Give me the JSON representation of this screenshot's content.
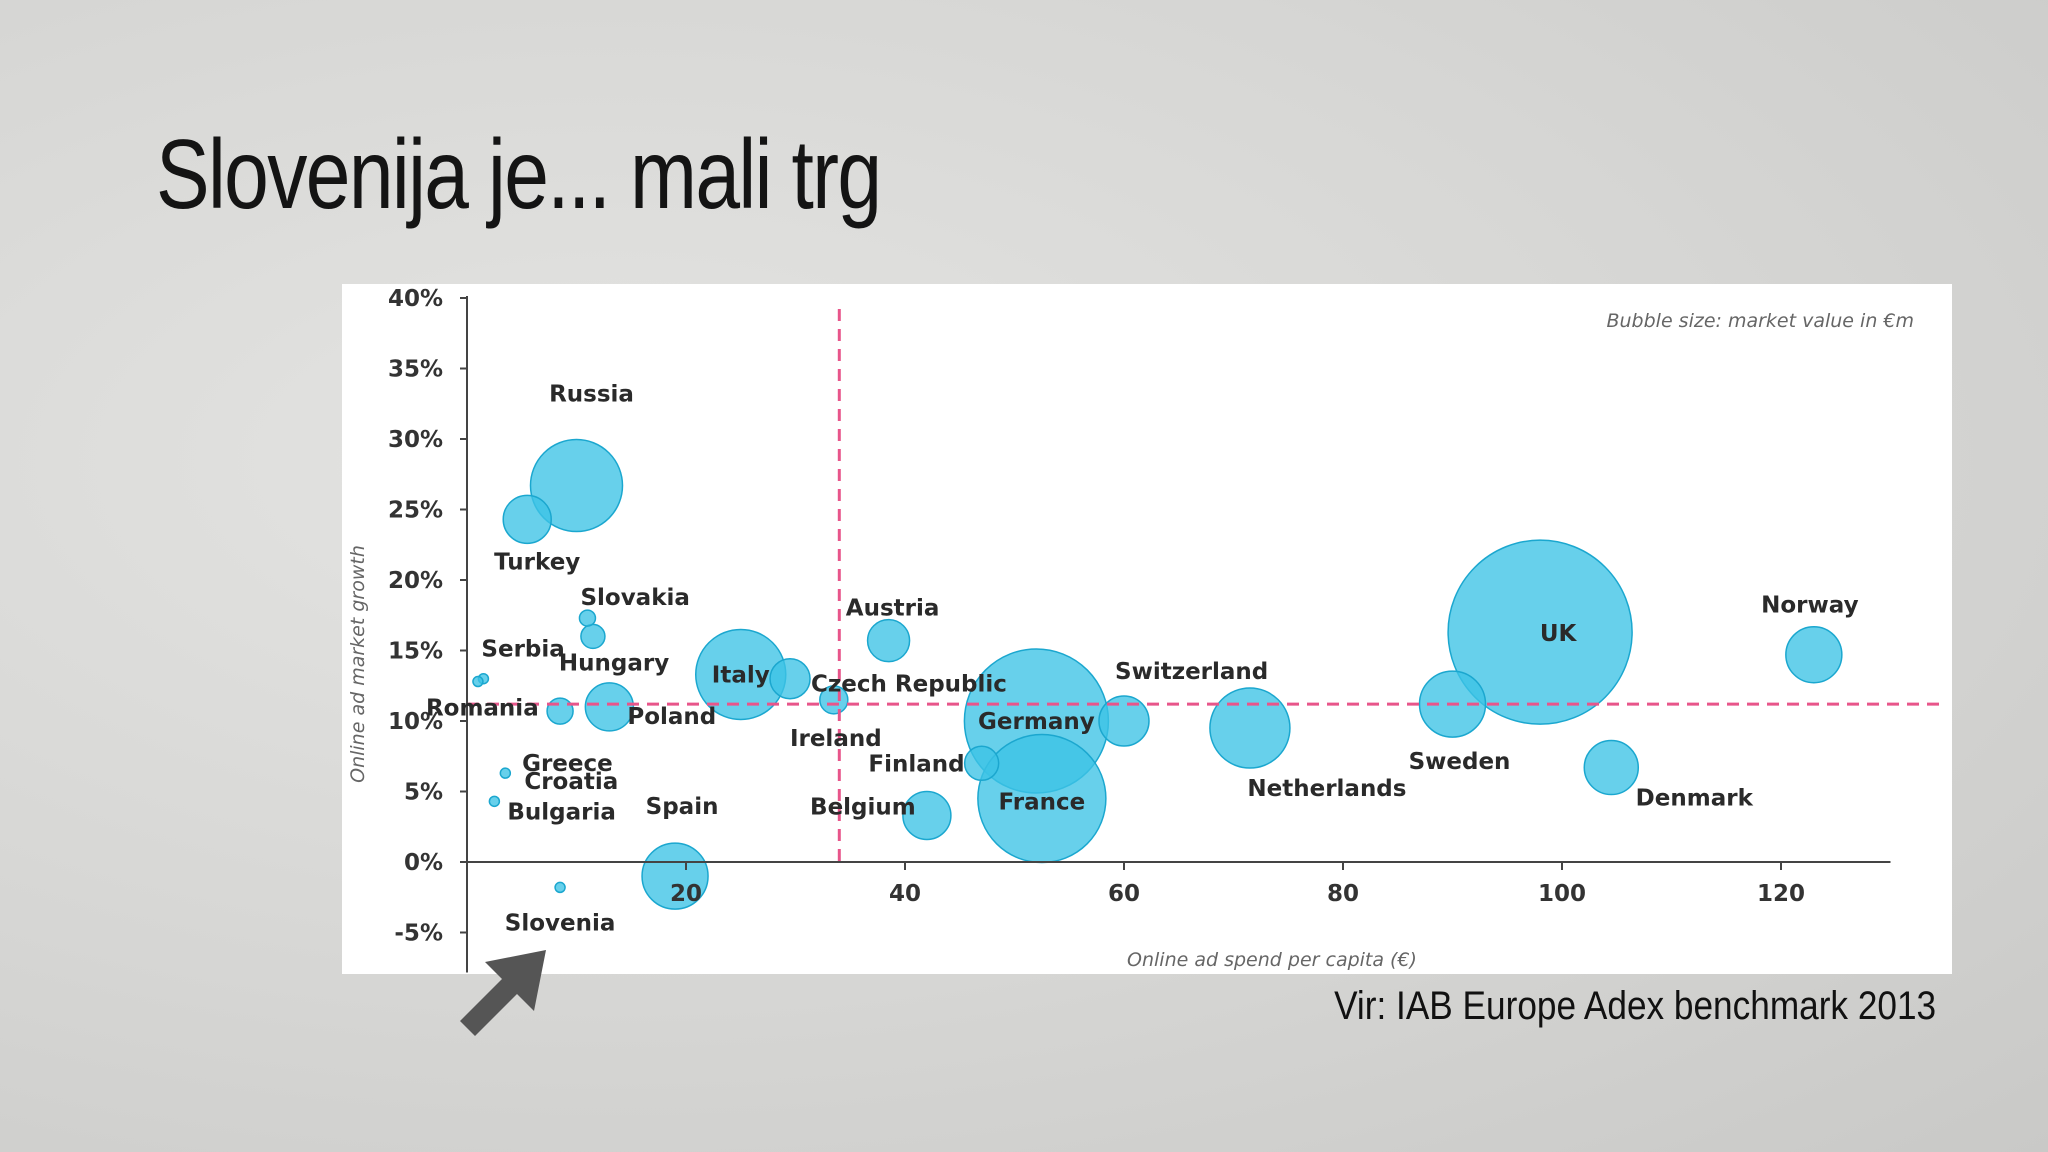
{
  "slide": {
    "title": "Slovenija je... mali trg",
    "source": "Vir: IAB Europe Adex benchmark 2013",
    "pointer_icon": "arrow-up-right-icon"
  },
  "colors": {
    "bubble_fill": "#3cc3e6",
    "bubble_stroke": "#1ba7cf",
    "reference_line": "#e8558a",
    "axis": "#444444",
    "arrow": "#555555"
  },
  "chart_data": {
    "type": "scatter",
    "title": "",
    "xlabel": "Online ad spend per capita (€)",
    "ylabel": "Online ad market growth",
    "note": "Bubble size: market value in €m",
    "xlim": [
      0,
      130
    ],
    "ylim": [
      -5,
      40
    ],
    "x_ticks": [
      20,
      40,
      60,
      80,
      100,
      120
    ],
    "x_tick_labels": [
      "20",
      "40",
      "60",
      "80",
      "100",
      "120"
    ],
    "y_ticks": [
      -5,
      0,
      5,
      10,
      15,
      20,
      25,
      30,
      35,
      40
    ],
    "y_tick_labels": [
      "-5%",
      "0%",
      "5%",
      "10%",
      "15%",
      "20%",
      "25%",
      "30%",
      "35%",
      "40%"
    ],
    "reference_lines": {
      "x": 34,
      "y": 11.2
    },
    "grid": false,
    "points": [
      {
        "label": "Russia",
        "x": 10,
        "y": 26.7,
        "r": 46
      },
      {
        "label": "Turkey",
        "x": 5.5,
        "y": 24.3,
        "r": 24
      },
      {
        "label": "Slovakia",
        "x": 11,
        "y": 17.3,
        "r": 8
      },
      {
        "label": "Hungary",
        "x": 11.5,
        "y": 16,
        "r": 12
      },
      {
        "label": "Serbia",
        "x": 1.5,
        "y": 13,
        "r": 5
      },
      {
        "label": "Romania",
        "x": 1,
        "y": 12.8,
        "r": 5
      },
      {
        "label": "Poland",
        "x": 13,
        "y": 11,
        "r": 24
      },
      {
        "label": "Greece",
        "x": 8.5,
        "y": 10.7,
        "r": 13
      },
      {
        "label": "Croatia",
        "x": 3.5,
        "y": 6.3,
        "r": 5
      },
      {
        "label": "Bulgaria",
        "x": 2.5,
        "y": 4.3,
        "r": 5
      },
      {
        "label": "Slovenia",
        "x": 8.5,
        "y": -1.8,
        "r": 5
      },
      {
        "label": "Spain",
        "x": 19,
        "y": -1,
        "r": 33
      },
      {
        "label": "Italy",
        "x": 25,
        "y": 13.3,
        "r": 45
      },
      {
        "label": "Czech Republic",
        "x": 29.5,
        "y": 13,
        "r": 20
      },
      {
        "label": "Ireland",
        "x": 33.5,
        "y": 11.5,
        "r": 14
      },
      {
        "label": "Austria",
        "x": 38.5,
        "y": 15.7,
        "r": 21
      },
      {
        "label": "Finland",
        "x": 47,
        "y": 7,
        "r": 17
      },
      {
        "label": "Belgium",
        "x": 42,
        "y": 3.3,
        "r": 24
      },
      {
        "label": "Germany",
        "x": 52,
        "y": 10,
        "r": 72
      },
      {
        "label": "France",
        "x": 52.5,
        "y": 4.5,
        "r": 64
      },
      {
        "label": "Switzerland",
        "x": 60,
        "y": 10,
        "r": 25
      },
      {
        "label": "Netherlands",
        "x": 71.5,
        "y": 9.5,
        "r": 40
      },
      {
        "label": "Sweden",
        "x": 90,
        "y": 11.2,
        "r": 33
      },
      {
        "label": "UK",
        "x": 98,
        "y": 16.3,
        "r": 92
      },
      {
        "label": "Denmark",
        "x": 104.5,
        "y": 6.7,
        "r": 27
      },
      {
        "label": "Norway",
        "x": 123,
        "y": 14.7,
        "r": 28
      }
    ]
  }
}
